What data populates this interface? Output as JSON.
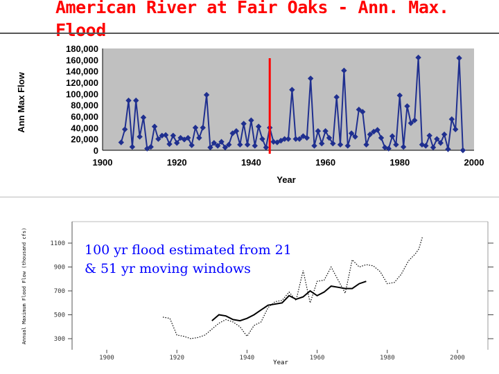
{
  "slide": {
    "title": "American River at Fair Oaks - Ann. Max.\nFlood",
    "accent_color": "#ff0000"
  },
  "chart_data": [
    {
      "type": "line",
      "title": "",
      "xlabel": "Year",
      "ylabel": "Ann Max Flow",
      "xlim": [
        1900,
        2000
      ],
      "ylim": [
        0,
        180000
      ],
      "x_ticks": [
        "1900",
        "1920",
        "1940",
        "1960",
        "1980",
        "2000"
      ],
      "y_ticks": [
        "0",
        "20,000",
        "40,000",
        "60,000",
        "80,000",
        "100,000",
        "120,000",
        "140,000",
        "160,000",
        "180,000"
      ],
      "plot_background": "#c0c0c0",
      "series_color": "#1f2f8f",
      "series": [
        {
          "x": [
            1905,
            1906,
            1907,
            1908,
            1909,
            1910,
            1911,
            1912,
            1913,
            1914,
            1915,
            1916,
            1917,
            1918,
            1919,
            1920,
            1921,
            1922,
            1923,
            1924,
            1925,
            1926,
            1927,
            1928,
            1929,
            1930,
            1931,
            1932,
            1933,
            1934,
            1935,
            1936,
            1937,
            1938,
            1939,
            1940,
            1941,
            1942,
            1943,
            1944,
            1945,
            1946,
            1947,
            1948,
            1949,
            1950,
            1951,
            1952,
            1953,
            1954,
            1955,
            1956,
            1957,
            1958,
            1959,
            1960,
            1961,
            1962,
            1963,
            1964,
            1965,
            1966,
            1967,
            1968,
            1969,
            1970,
            1971,
            1972,
            1973,
            1974,
            1975,
            1976,
            1977,
            1978,
            1979,
            1980,
            1981,
            1982,
            1983,
            1984,
            1985,
            1986,
            1987,
            1988,
            1989,
            1990,
            1991,
            1992,
            1993,
            1994,
            1995,
            1996,
            1997
          ],
          "y": [
            14000,
            37000,
            88000,
            6000,
            88000,
            24000,
            58000,
            3000,
            6000,
            42000,
            20000,
            26000,
            27000,
            11000,
            26000,
            13000,
            22000,
            19000,
            22000,
            9000,
            40000,
            22000,
            40000,
            98000,
            5000,
            13000,
            8000,
            15000,
            5000,
            10000,
            30000,
            34000,
            10000,
            47000,
            10000,
            53000,
            8000,
            42000,
            20000,
            5000,
            40000,
            15000,
            14000,
            17000,
            20000,
            20000,
            107000,
            20000,
            20000,
            25000,
            22000,
            127000,
            8000,
            34000,
            12000,
            34000,
            22000,
            12000,
            94000,
            10000,
            141000,
            8000,
            30000,
            24000,
            72000,
            68000,
            10000,
            28000,
            33000,
            36000,
            22000,
            5000,
            3000,
            25000,
            10000,
            97000,
            6000,
            78000,
            48000,
            53000,
            164000,
            10000,
            8000,
            26000,
            5000,
            20000,
            13000,
            28000,
            2000,
            55000,
            37000,
            163000,
            0
          ]
        }
      ],
      "marker_line": {
        "x": 1945,
        "color": "#ff0000"
      }
    },
    {
      "type": "line",
      "title": "",
      "xlabel": "Year",
      "ylabel": "Annual Maximum Flood Flow (thousand cfs)",
      "xlim": [
        1900,
        2000
      ],
      "ylim": [
        200,
        1200
      ],
      "x_ticks": [
        "1900",
        "1920",
        "1940",
        "1960",
        "1980",
        "2000"
      ],
      "y_ticks": [
        "300",
        "500",
        "700",
        "900",
        "1100"
      ],
      "annotation": "100 yr flood estimated from 21 & 51 yr moving windows",
      "series": [
        {
          "window": "21 yr",
          "style": "dotted",
          "x": [
            1916,
            1918,
            1920,
            1922,
            1924,
            1926,
            1928,
            1930,
            1932,
            1934,
            1936,
            1938,
            1940,
            1942,
            1944,
            1946,
            1948,
            1950,
            1952,
            1954,
            1956,
            1958,
            1960,
            1962,
            1964,
            1966,
            1968,
            1970,
            1972,
            1974,
            1976,
            1978,
            1980,
            1982,
            1984,
            1986,
            1988,
            1989,
            1990
          ],
          "y": [
            480,
            470,
            330,
            320,
            300,
            310,
            330,
            380,
            430,
            460,
            440,
            400,
            320,
            410,
            440,
            560,
            610,
            620,
            690,
            620,
            870,
            600,
            780,
            790,
            900,
            790,
            680,
            960,
            900,
            920,
            910,
            860,
            760,
            770,
            840,
            950,
            1010,
            1050,
            1150
          ]
        },
        {
          "window": "51 yr",
          "style": "solid",
          "x": [
            1930,
            1932,
            1934,
            1936,
            1938,
            1940,
            1942,
            1944,
            1946,
            1948,
            1950,
            1952,
            1954,
            1956,
            1958,
            1960,
            1962,
            1964,
            1966,
            1968,
            1970,
            1972,
            1974
          ],
          "y": [
            450,
            500,
            490,
            460,
            450,
            470,
            500,
            540,
            580,
            590,
            600,
            660,
            630,
            650,
            700,
            660,
            690,
            740,
            730,
            720,
            720,
            760,
            780
          ]
        }
      ]
    }
  ]
}
